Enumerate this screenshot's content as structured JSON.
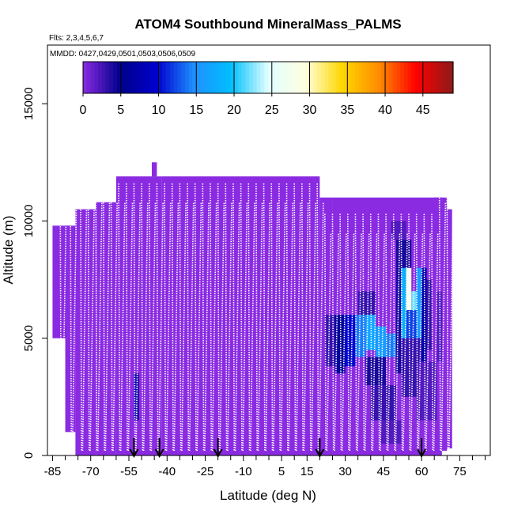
{
  "chart_data": {
    "type": "heatmap",
    "title": "ATOM4 Southbound MineralMass_PALMS",
    "subtitle_flights": "Flts: 2,3,4,5,6,7",
    "subtitle_dates": "MMDD: 0427,0429,0501,0503,0506,0509",
    "xlabel": "Latitude (deg N)",
    "ylabel": "Altitude (m)",
    "xlim": [
      -87,
      87
    ],
    "ylim": [
      0,
      17500
    ],
    "x_ticks": [
      -85,
      -70,
      -55,
      -40,
      -25,
      -10,
      5,
      15,
      30,
      45,
      60,
      75
    ],
    "x_ticks_minor": [
      -80,
      -75,
      -65,
      -60,
      -50,
      -45,
      -35,
      -30,
      -20,
      -15,
      -5,
      0,
      10,
      20,
      25,
      35,
      40,
      50,
      55,
      65,
      70,
      80,
      85
    ],
    "y_ticks": [
      0,
      5000,
      10000,
      15000
    ],
    "colorbar": {
      "ticks": [
        0,
        5,
        10,
        15,
        20,
        25,
        30,
        35,
        40,
        45
      ],
      "range": [
        0,
        49
      ],
      "colors": [
        "#8a2be2",
        "#00008b",
        "#0000cd",
        "#1e90ff",
        "#00bfff",
        "#e0ffff",
        "#ffffe0",
        "#ffd700",
        "#ff8c00",
        "#ff0000",
        "#8b1a1a"
      ]
    },
    "background_value": 0,
    "coverage": [
      {
        "lat": [
          -85,
          -78
        ],
        "alt": [
          5000,
          9800
        ]
      },
      {
        "lat": [
          -80,
          -76
        ],
        "alt": [
          1000,
          9800
        ]
      },
      {
        "lat": [
          -76,
          -68
        ],
        "alt": [
          0,
          10500
        ]
      },
      {
        "lat": [
          -68,
          -60
        ],
        "alt": [
          0,
          10800
        ]
      },
      {
        "lat": [
          -60,
          -42
        ],
        "alt": [
          0,
          11900
        ]
      },
      {
        "lat": [
          -46,
          -44
        ],
        "alt": [
          11900,
          12500
        ]
      },
      {
        "lat": [
          -42,
          20
        ],
        "alt": [
          0,
          11900
        ]
      },
      {
        "lat": [
          20,
          25
        ],
        "alt": [
          0,
          11000
        ]
      },
      {
        "lat": [
          25,
          68
        ],
        "alt": [
          0,
          11000
        ]
      },
      {
        "lat": [
          65,
          70
        ],
        "alt": [
          200,
          11000
        ]
      },
      {
        "lat": [
          70,
          72
        ],
        "alt": [
          300,
          10500
        ]
      }
    ],
    "cells": [
      {
        "lat": [
          -53,
          -52
        ],
        "alt": [
          1500,
          3500
        ],
        "value": 8
      },
      {
        "lat": [
          -52,
          -51
        ],
        "alt": [
          1500,
          3500
        ],
        "value": 4
      },
      {
        "lat": [
          22,
          26
        ],
        "alt": [
          3800,
          6000
        ],
        "value": 3
      },
      {
        "lat": [
          26,
          30
        ],
        "alt": [
          3500,
          6000
        ],
        "value": 6
      },
      {
        "lat": [
          30,
          34
        ],
        "alt": [
          3800,
          6000
        ],
        "value": 10
      },
      {
        "lat": [
          34,
          38
        ],
        "alt": [
          4200,
          6000
        ],
        "value": 14
      },
      {
        "lat": [
          38,
          42
        ],
        "alt": [
          4500,
          6000
        ],
        "value": 17
      },
      {
        "lat": [
          42,
          46
        ],
        "alt": [
          4200,
          5500
        ],
        "value": 16
      },
      {
        "lat": [
          46,
          50
        ],
        "alt": [
          4200,
          5200
        ],
        "value": 14
      },
      {
        "lat": [
          38,
          46
        ],
        "alt": [
          3000,
          4200
        ],
        "value": 4
      },
      {
        "lat": [
          40,
          50
        ],
        "alt": [
          1500,
          3000
        ],
        "value": 3
      },
      {
        "lat": [
          35,
          42
        ],
        "alt": [
          6000,
          7000
        ],
        "value": 3
      },
      {
        "lat": [
          50,
          52
        ],
        "alt": [
          3500,
          8000
        ],
        "value": 4
      },
      {
        "lat": [
          52,
          54
        ],
        "alt": [
          5000,
          8000
        ],
        "value": 18
      },
      {
        "lat": [
          54,
          56
        ],
        "alt": [
          6200,
          8000
        ],
        "value": 28
      },
      {
        "lat": [
          56,
          58
        ],
        "alt": [
          5500,
          7000
        ],
        "value": 22
      },
      {
        "lat": [
          58,
          60
        ],
        "alt": [
          5000,
          8000
        ],
        "value": 16
      },
      {
        "lat": [
          54,
          58
        ],
        "alt": [
          5000,
          6200
        ],
        "value": 12
      },
      {
        "lat": [
          60,
          62
        ],
        "alt": [
          4000,
          8000
        ],
        "value": 7
      },
      {
        "lat": [
          62,
          64
        ],
        "alt": [
          4500,
          7500
        ],
        "value": 3
      },
      {
        "lat": [
          50,
          56
        ],
        "alt": [
          8000,
          9200
        ],
        "value": 4
      },
      {
        "lat": [
          48,
          54
        ],
        "alt": [
          9200,
          10000
        ],
        "value": 2
      },
      {
        "lat": [
          52,
          60
        ],
        "alt": [
          2500,
          5000
        ],
        "value": 3
      },
      {
        "lat": [
          44,
          52
        ],
        "alt": [
          500,
          1500
        ],
        "value": 2
      },
      {
        "lat": [
          58,
          66
        ],
        "alt": [
          1500,
          4000
        ],
        "value": 2
      },
      {
        "lat": [
          66,
          68
        ],
        "alt": [
          4000,
          7000
        ],
        "value": 2
      }
    ],
    "flight_track_longitudes": [
      -82,
      -78,
      -74,
      -71,
      -68,
      -65,
      -62,
      -59,
      -56,
      -53,
      -50,
      -47,
      -44,
      -41,
      -38,
      -35,
      -32,
      -29,
      -26,
      -23,
      -20,
      -17,
      -14,
      -11,
      -8,
      -5,
      -2,
      1,
      4,
      7,
      10,
      13,
      16,
      19,
      22,
      25,
      28,
      31,
      34,
      37,
      40,
      43,
      46,
      49,
      52,
      55,
      58,
      61,
      64,
      67,
      70
    ],
    "arrows_lat": [
      -53,
      -43,
      -20,
      20,
      60
    ]
  }
}
